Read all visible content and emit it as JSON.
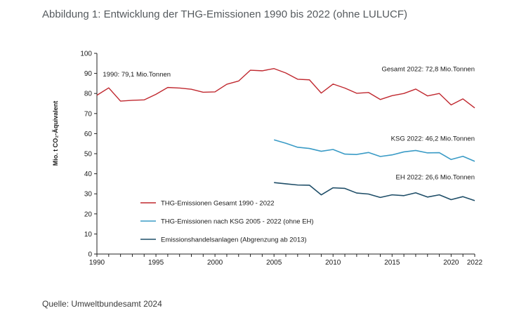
{
  "figure": {
    "title": "Abbildung 1: Entwicklung der THG-Emissionen 1990 bis 2022 (ohne LULUCF)",
    "source": "Quelle: Umweltbundesamt 2024"
  },
  "chart_data": {
    "type": "line",
    "title": "",
    "xlabel": "",
    "ylabel": "Mio. t CO₂-Äquivalent",
    "xlim": [
      1990,
      2022
    ],
    "ylim": [
      0,
      100
    ],
    "x_ticks": [
      1990,
      1995,
      2000,
      2005,
      2010,
      2015,
      2020,
      2022
    ],
    "y_ticks": [
      0,
      10,
      20,
      30,
      40,
      50,
      60,
      70,
      80,
      90,
      100
    ],
    "grid": false,
    "legend_position": "bottom-left",
    "series": [
      {
        "name": "THG-Emissionen Gesamt 1990 - 2022",
        "color": "#c0282f",
        "x": [
          1990,
          1991,
          1992,
          1993,
          1994,
          1995,
          1996,
          1997,
          1998,
          1999,
          2000,
          2001,
          2002,
          2003,
          2004,
          2005,
          2006,
          2007,
          2008,
          2009,
          2010,
          2011,
          2012,
          2013,
          2014,
          2015,
          2016,
          2017,
          2018,
          2019,
          2020,
          2021,
          2022
        ],
        "values": [
          79.1,
          82.8,
          76.2,
          76.6,
          76.8,
          79.6,
          83.0,
          82.7,
          82.1,
          80.6,
          80.8,
          84.6,
          86.2,
          91.6,
          91.3,
          92.4,
          90.2,
          87.1,
          86.8,
          80.2,
          84.7,
          82.7,
          80.1,
          80.5,
          77.0,
          78.9,
          80.0,
          82.2,
          78.8,
          80.0,
          74.3,
          77.3,
          72.8
        ]
      },
      {
        "name": "THG-Emissionen nach KSG 2005 - 2022 (ohne EH)",
        "color": "#3a9bc6",
        "x": [
          2005,
          2006,
          2007,
          2008,
          2009,
          2010,
          2011,
          2012,
          2013,
          2014,
          2015,
          2016,
          2017,
          2018,
          2019,
          2020,
          2021,
          2022
        ],
        "values": [
          56.9,
          55.2,
          53.2,
          52.6,
          51.2,
          52.1,
          49.8,
          49.6,
          50.6,
          48.6,
          49.4,
          50.9,
          51.6,
          50.4,
          50.5,
          47.1,
          48.7,
          46.2
        ]
      },
      {
        "name": "Emissionshandelsanlagen (Abgrenzung ab 2013)",
        "color": "#1f4e68",
        "x": [
          2005,
          2006,
          2007,
          2008,
          2009,
          2010,
          2011,
          2012,
          2013,
          2014,
          2015,
          2016,
          2017,
          2018,
          2019,
          2020,
          2021,
          2022
        ],
        "values": [
          35.6,
          35.0,
          34.4,
          34.3,
          29.5,
          33.0,
          32.7,
          30.4,
          29.9,
          28.2,
          29.5,
          29.1,
          30.5,
          28.4,
          29.5,
          27.1,
          28.6,
          26.6
        ]
      }
    ],
    "annotations": [
      {
        "text": "1990: 79,1 Mio.Tonnen",
        "x": 1990.5,
        "y": 88.5
      },
      {
        "text": "Gesamt 2022: 72,8 Mio.Tonnen",
        "x": 2022,
        "y": 91.0
      },
      {
        "text": "KSG 2022: 46,2 Mio.Tonnen",
        "x": 2022,
        "y": 56.5
      },
      {
        "text": "EH 2022: 26,6 Mio.Tonnen",
        "x": 2022,
        "y": 37.2
      }
    ]
  }
}
